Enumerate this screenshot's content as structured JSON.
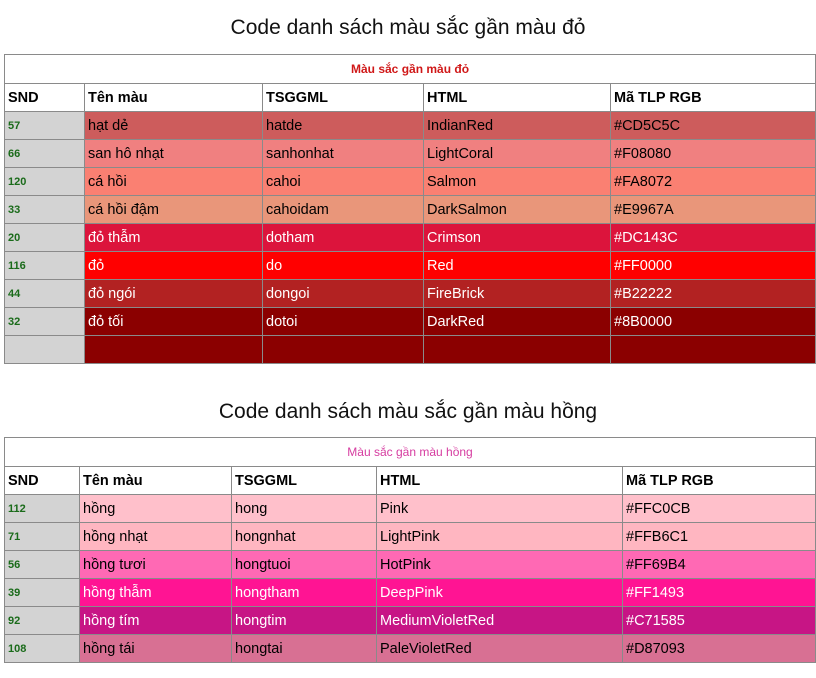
{
  "section1": {
    "title": "Code danh sách màu sắc gần màu đỏ",
    "caption": "Màu sắc gần màu đỏ",
    "headers": [
      "SND",
      "Tên màu",
      "TSGGML",
      "HTML",
      "Mã TLP RGB"
    ],
    "rows": [
      {
        "snd": "57",
        "name": "hạt dẻ",
        "tsggml": "hatde",
        "html": "IndianRed",
        "rgb": "#CD5C5C",
        "bg": "#CD5C5C",
        "fg": "#000000"
      },
      {
        "snd": "66",
        "name": "san hô nhạt",
        "tsggml": "sanhonhat",
        "html": "LightCoral",
        "rgb": "#F08080",
        "bg": "#F08080",
        "fg": "#000000"
      },
      {
        "snd": "120",
        "name": "cá hồi",
        "tsggml": "cahoi",
        "html": "Salmon",
        "rgb": "#FA8072",
        "bg": "#FA8072",
        "fg": "#000000"
      },
      {
        "snd": "33",
        "name": "cá hồi đậm",
        "tsggml": "cahoidam",
        "html": "DarkSalmon",
        "rgb": "#E9967A",
        "bg": "#E9967A",
        "fg": "#000000"
      },
      {
        "snd": "20",
        "name": "đỏ thẫm",
        "tsggml": "dotham",
        "html": "Crimson",
        "rgb": "#DC143C",
        "bg": "#DC143C",
        "fg": "#ffffff"
      },
      {
        "snd": "116",
        "name": "đỏ",
        "tsggml": "do",
        "html": "Red",
        "rgb": "#FF0000",
        "bg": "#FF0000",
        "fg": "#ffffff"
      },
      {
        "snd": "44",
        "name": "đỏ ngói",
        "tsggml": "dongoi",
        "html": "FireBrick",
        "rgb": "#B22222",
        "bg": "#B22222",
        "fg": "#ffffff"
      },
      {
        "snd": "32",
        "name": "đỏ tối",
        "tsggml": "dotoi",
        "html": "DarkRed",
        "rgb": "#8B0000",
        "bg": "#8B0000",
        "fg": "#ffffff"
      }
    ],
    "empty_row_bg": "#8B0000"
  },
  "section2": {
    "title": "Code danh sách màu sắc gần màu hồng",
    "caption": "Màu sắc gần màu hồng",
    "headers": [
      "SND",
      "Tên màu",
      "TSGGML",
      "HTML",
      "Mã TLP RGB"
    ],
    "rows": [
      {
        "snd": "112",
        "name": "hồng",
        "tsggml": "hong",
        "html": "Pink",
        "rgb": "#FFC0CB",
        "bg": "#FFC0CB",
        "fg": "#000000"
      },
      {
        "snd": "71",
        "name": "hồng nhạt",
        "tsggml": "hongnhat",
        "html": "LightPink",
        "rgb": "#FFB6C1",
        "bg": "#FFB6C1",
        "fg": "#000000"
      },
      {
        "snd": "56",
        "name": "hồng tươi",
        "tsggml": "hongtuoi",
        "html": "HotPink",
        "rgb": "#FF69B4",
        "bg": "#FF69B4",
        "fg": "#000000"
      },
      {
        "snd": "39",
        "name": "hồng thẫm",
        "tsggml": "hongtham",
        "html": "DeepPink",
        "rgb": "#FF1493",
        "bg": "#FF1493",
        "fg": "#ffffff"
      },
      {
        "snd": "92",
        "name": "hồng tím",
        "tsggml": "hongtim",
        "html": "MediumVioletRed",
        "rgb": "#C71585",
        "bg": "#C71585",
        "fg": "#ffffff"
      },
      {
        "snd": "108",
        "name": "hồng tái",
        "tsggml": "hongtai",
        "html": "PaleVioletRed",
        "rgb": "#D87093",
        "bg": "#D87093",
        "fg": "#000000"
      }
    ]
  }
}
